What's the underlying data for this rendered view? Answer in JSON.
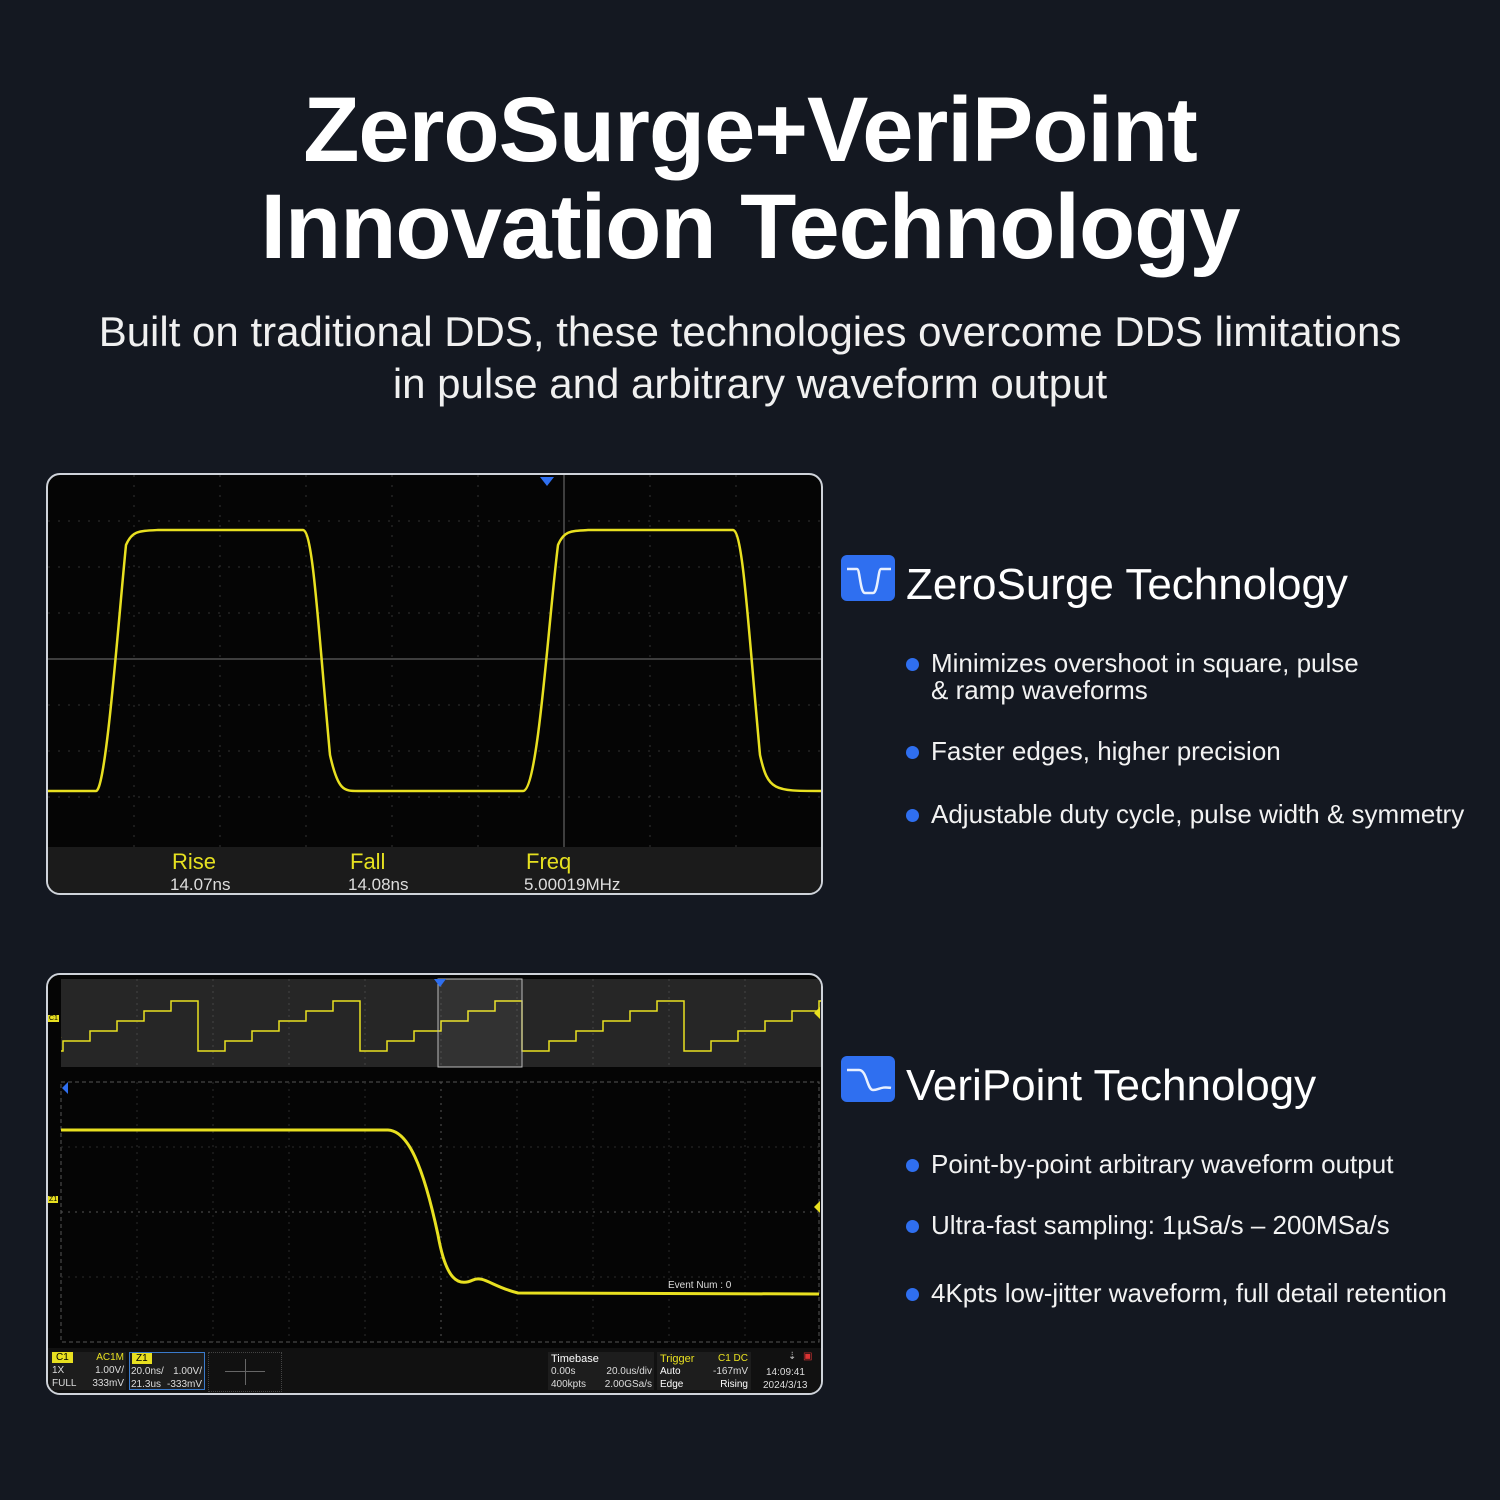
{
  "header": {
    "title_line1": "ZeroSurge+VeriPoint",
    "title_line2": "Innovation Technology",
    "subtitle_line1": "Built on traditional DDS, these technologies overcome DDS limitations",
    "subtitle_line2": "in pulse and arbitrary waveform output"
  },
  "scope1": {
    "measurements": [
      {
        "label": "Rise",
        "value": "14.07ns"
      },
      {
        "label": "Fall",
        "value": "14.08ns"
      },
      {
        "label": "Freq",
        "value": "5.00019MHz"
      }
    ]
  },
  "scope2": {
    "event": "Event Num : 0",
    "c1": {
      "tag": "C1",
      "coupling": "AC1M",
      "probe": "1X",
      "scale": "1.00V/",
      "bw": "FULL",
      "offset": "333mV"
    },
    "z1": {
      "tag": "Z1",
      "time": "20.0ns/",
      "scale": "1.00V/",
      "pos": "21.3us",
      "offset": "-333mV"
    },
    "timebase": {
      "label": "Timebase",
      "delay": "0.00s",
      "div": "20.0us/div",
      "pts": "400kpts",
      "rate": "2.00GSa/s"
    },
    "trigger": {
      "label": "Trigger",
      "src": "C1 DC",
      "mode": "Auto",
      "level": "-167mV",
      "type": "Edge",
      "slope": "Rising"
    },
    "time": "14:09:41",
    "date": "2024/3/13",
    "ch_markers": {
      "c1": "C1",
      "z1": "Z1"
    }
  },
  "features": [
    {
      "title": "ZeroSurge Technology",
      "icon": "pulse-icon",
      "bullets": [
        "Minimizes overshoot in square, pulse\n& ramp waveforms",
        "Faster edges, higher precision",
        "Adjustable duty cycle, pulse width & symmetry"
      ]
    },
    {
      "title": "VeriPoint Technology",
      "icon": "step-icon",
      "bullets": [
        "Point-by-point arbitrary waveform output",
        "Ultra-fast sampling: 1µSa/s – 200MSa/s",
        "4Kpts low-jitter waveform, full detail retention"
      ]
    }
  ],
  "colors": {
    "accent": "#2f6ff0",
    "trace": "#e8e020",
    "background": "#141821"
  }
}
